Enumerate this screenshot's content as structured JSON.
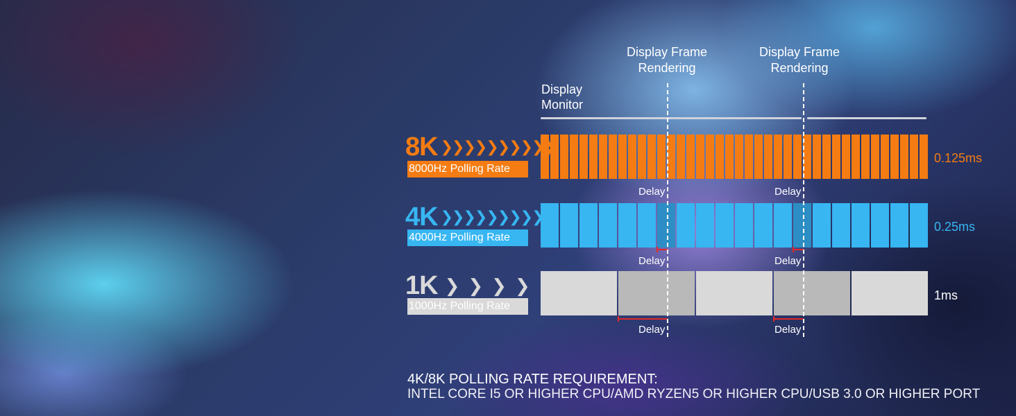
{
  "diagram": {
    "frame_labels": [
      {
        "line1": "Display Frame",
        "line2": "Rendering"
      },
      {
        "line1": "Display Frame",
        "line2": "Rendering"
      }
    ],
    "monitor_label": {
      "line1": "Display",
      "line2": "Monitor"
    },
    "rates": [
      {
        "big": "8K",
        "subtitle": "8000Hz Polling Rate",
        "interval": "0.125ms",
        "color": "#f57c12",
        "chevron_count": 10,
        "cells": 40,
        "delay_labels": [
          "Delay",
          "Delay"
        ]
      },
      {
        "big": "4K",
        "subtitle": "4000Hz Polling Rate",
        "interval": "0.25ms",
        "color": "#37b6f2",
        "chevron_count": 10,
        "cells": 20,
        "delay_labels": [
          "Delay",
          "Delay"
        ]
      },
      {
        "big": "1K",
        "subtitle": "1000Hz Polling Rate",
        "interval": "1ms",
        "color": "#d9d9d9",
        "chevron_count": 4,
        "cells": 5,
        "delay_labels": [
          "Delay",
          "Delay"
        ]
      }
    ]
  },
  "requirement": {
    "title": "4K/8K POLLING RATE REQUIREMENT:",
    "body": "INTEL CORE I5 OR HIGHER CPU/AMD RYZEN5 OR HIGHER CPU/USB 3.0 OR HIGHER PORT"
  },
  "colors": {
    "orange": "#f57c12",
    "blue": "#37b6f2",
    "gray": "#d9d9d9",
    "delay_marker": "#e02a2a"
  }
}
